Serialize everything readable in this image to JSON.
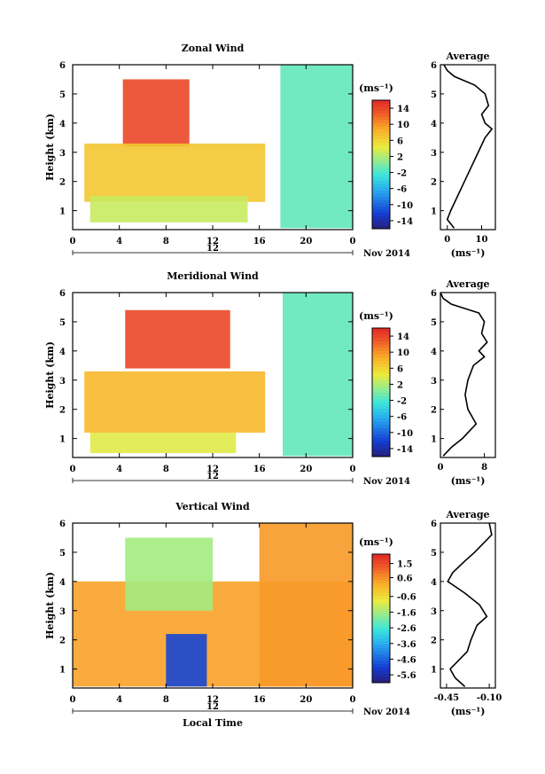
{
  "chart_data": [
    {
      "type": "heatmap",
      "title": "Zonal Wind",
      "ylabel": "Height (km)",
      "unit_label": "(ms⁻¹)",
      "xticks": [
        "0",
        "4",
        "8",
        "12",
        "16",
        "20",
        "0"
      ],
      "xlim": [
        0,
        24
      ],
      "yticks": [
        "1",
        "2",
        "3",
        "4",
        "5",
        "6"
      ],
      "ylim": [
        0.35,
        6
      ],
      "colorbar_ticks": [
        "14",
        "10",
        "6",
        "2",
        "-2",
        "-6",
        "-10",
        "-14"
      ],
      "colorbar_range": [
        -16,
        16
      ],
      "date_bar_label": "12",
      "date_suffix": "Nov 2014",
      "features": [
        {
          "t0": 4.3,
          "t1": 10.0,
          "z0": 3.2,
          "z1": 5.5,
          "value": 14
        },
        {
          "t0": 1.0,
          "t1": 16.5,
          "z0": 1.3,
          "z1": 3.3,
          "value": 7
        },
        {
          "t0": 1.5,
          "t1": 15.0,
          "z0": 0.6,
          "z1": 1.5,
          "value": 3
        },
        {
          "t0": 17.8,
          "t1": 24.0,
          "z0": 0.4,
          "z1": 6.0,
          "value": -1
        }
      ],
      "average_profile": {
        "title": "Average",
        "xlabel": "(ms⁻¹)",
        "xticks": [
          "0",
          "10"
        ],
        "xlim": [
          -2,
          14
        ],
        "z": [
          0.4,
          0.7,
          1.0,
          1.5,
          2.0,
          2.5,
          3.0,
          3.5,
          3.8,
          4.0,
          4.3,
          4.6,
          5.0,
          5.3,
          5.6,
          5.8,
          6.0
        ],
        "value": [
          2,
          0,
          1,
          3,
          5,
          7,
          9,
          11,
          13,
          11,
          10,
          12,
          11,
          8,
          2,
          0,
          -1
        ]
      }
    },
    {
      "type": "heatmap",
      "title": "Meridional Wind",
      "ylabel": "Height (km)",
      "unit_label": "(ms⁻¹)",
      "xticks": [
        "0",
        "4",
        "8",
        "12",
        "16",
        "20",
        "0"
      ],
      "xlim": [
        0,
        24
      ],
      "yticks": [
        "1",
        "2",
        "3",
        "4",
        "5",
        "6"
      ],
      "ylim": [
        0.35,
        6
      ],
      "colorbar_ticks": [
        "14",
        "10",
        "6",
        "2",
        "-2",
        "-6",
        "-10",
        "-14"
      ],
      "colorbar_range": [
        -16,
        16
      ],
      "date_bar_label": "12",
      "date_suffix": "Nov 2014",
      "features": [
        {
          "t0": 4.5,
          "t1": 13.5,
          "z0": 3.4,
          "z1": 5.4,
          "value": 14
        },
        {
          "t0": 1.0,
          "t1": 16.5,
          "z0": 1.2,
          "z1": 3.3,
          "value": 8
        },
        {
          "t0": 1.5,
          "t1": 14.0,
          "z0": 0.5,
          "z1": 1.2,
          "value": 4
        },
        {
          "t0": 18.0,
          "t1": 24.0,
          "z0": 0.4,
          "z1": 6.0,
          "value": -1
        }
      ],
      "average_profile": {
        "title": "Average",
        "xlabel": "(ms⁻¹)",
        "xticks": [
          "0",
          "8"
        ],
        "xlim": [
          0,
          10
        ],
        "z": [
          0.4,
          0.7,
          1.0,
          1.5,
          2.0,
          2.5,
          3.0,
          3.5,
          3.8,
          4.0,
          4.3,
          4.6,
          5.0,
          5.3,
          5.6,
          5.8,
          6.0
        ],
        "value": [
          0.5,
          2,
          4,
          6.5,
          5,
          4.5,
          5,
          6,
          8,
          7,
          8.5,
          7.5,
          8,
          7,
          2,
          0.5,
          0
        ]
      }
    },
    {
      "type": "heatmap",
      "title": "Vertical Wind",
      "ylabel": "Height (km)",
      "xlabel": "Local Time",
      "unit_label": "(ms⁻¹)",
      "xticks": [
        "0",
        "4",
        "8",
        "12",
        "16",
        "20",
        "0"
      ],
      "xlim": [
        0,
        24
      ],
      "yticks": [
        "1",
        "2",
        "3",
        "4",
        "5",
        "6"
      ],
      "ylim": [
        0.35,
        6
      ],
      "colorbar_ticks": [
        "1.5",
        "0.6",
        "-0.6",
        "-1.6",
        "-2.6",
        "-3.6",
        "-4.6",
        "-5.6"
      ],
      "colorbar_range": [
        -6.1,
        2.1
      ],
      "date_bar_label": "12",
      "date_suffix": "Nov 2014",
      "features": [
        {
          "t0": 0.0,
          "t1": 24.0,
          "z0": 0.4,
          "z1": 4.0,
          "value": 0.4
        },
        {
          "t0": 4.5,
          "t1": 12.0,
          "z0": 3.0,
          "z1": 5.5,
          "value": -1.6
        },
        {
          "t0": 8.0,
          "t1": 11.5,
          "z0": 0.4,
          "z1": 2.2,
          "value": -5.0
        },
        {
          "t0": 16.0,
          "t1": 24.0,
          "z0": 0.4,
          "z1": 6.0,
          "value": 0.5
        }
      ],
      "average_profile": {
        "title": "Average",
        "xlabel": "(ms⁻¹)",
        "xticks": [
          "-0.45",
          "-0.10"
        ],
        "xlim": [
          -0.5,
          -0.05
        ],
        "z": [
          0.4,
          0.7,
          1.0,
          1.3,
          1.6,
          2.0,
          2.5,
          2.8,
          3.2,
          3.6,
          4.0,
          4.3,
          4.7,
          5.0,
          5.3,
          5.6,
          6.0
        ],
        "value": [
          -0.3,
          -0.38,
          -0.42,
          -0.35,
          -0.28,
          -0.25,
          -0.2,
          -0.12,
          -0.18,
          -0.3,
          -0.44,
          -0.4,
          -0.3,
          -0.22,
          -0.15,
          -0.08,
          -0.1
        ]
      }
    }
  ]
}
